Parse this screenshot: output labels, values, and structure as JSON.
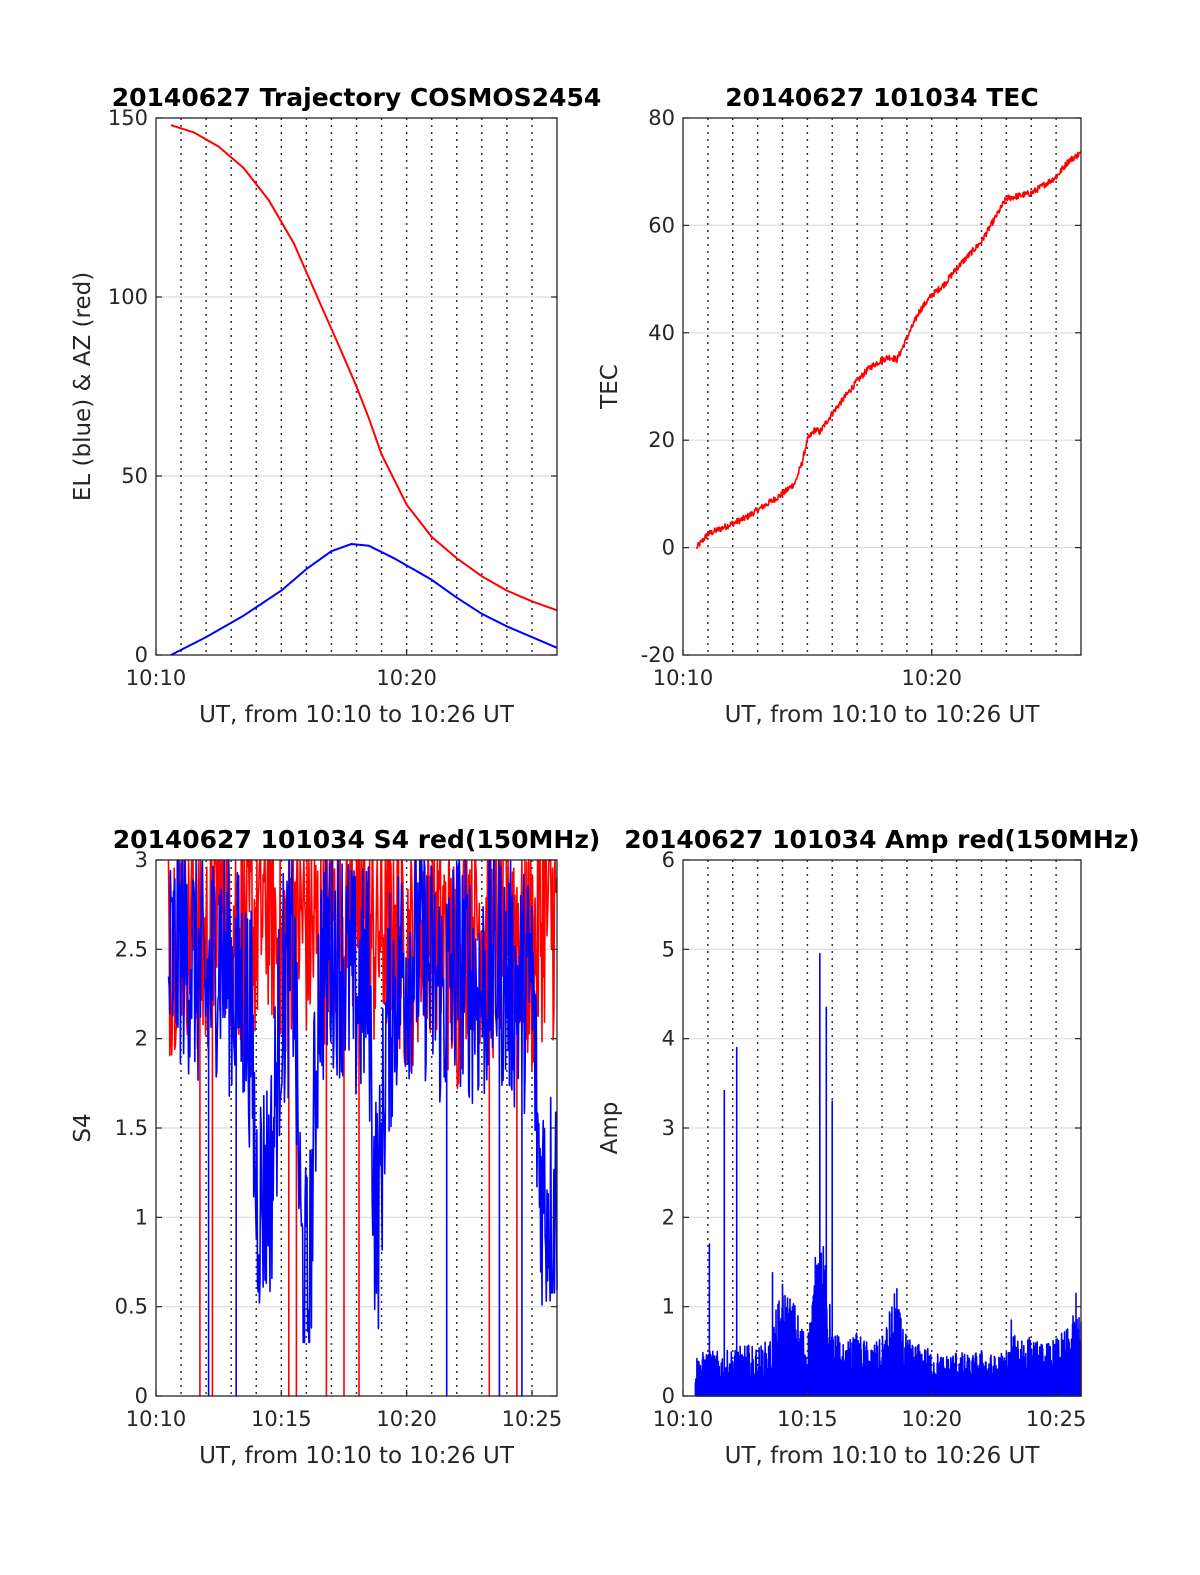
{
  "chart_data": [
    {
      "type": "line",
      "title": "20140627 Trajectory COSMOS2454",
      "xlabel": "UT, from 10:10 to 10:26 UT",
      "ylabel": "EL (blue) & AZ (red)",
      "xlim_minutes": [
        10.0,
        26.0
      ],
      "ylim": [
        0,
        150
      ],
      "yticks": [
        0,
        50,
        100,
        150
      ],
      "xticks": [
        {
          "value": 10,
          "label": "10:10"
        },
        {
          "value": 20,
          "label": "10:20"
        }
      ],
      "vgrid_minutes": [
        11,
        12,
        13,
        14,
        15,
        16,
        17,
        18,
        19,
        20,
        21,
        22,
        23,
        24,
        25
      ],
      "hgrid": true,
      "series": [
        {
          "color": "#ff0000",
          "x": [
            10.6,
            11.5,
            12.5,
            13.5,
            14.5,
            15.5,
            16.5,
            17.2,
            18,
            18.5,
            19,
            20,
            21,
            22,
            23,
            24,
            25,
            26
          ],
          "y": [
            148,
            146,
            142,
            136,
            127,
            115,
            99,
            88,
            75,
            66,
            56,
            42,
            33,
            27,
            22,
            18,
            15,
            12.5
          ]
        },
        {
          "color": "#0000ff",
          "x": [
            10.6,
            12,
            13.5,
            15,
            16,
            17,
            17.8,
            18.5,
            19.5,
            21,
            22,
            23,
            24,
            25,
            26
          ],
          "y": [
            0,
            5,
            11,
            18,
            24,
            29,
            31,
            30.5,
            27,
            21,
            16,
            11.5,
            8,
            5,
            2
          ]
        }
      ]
    },
    {
      "type": "line",
      "title": "20140627 101034 TEC",
      "xlabel": "UT, from 10:10 to 10:26 UT",
      "ylabel": "TEC",
      "xlim_minutes": [
        10.0,
        26.0
      ],
      "ylim": [
        -20,
        80
      ],
      "yticks": [
        -20,
        0,
        20,
        40,
        60,
        80
      ],
      "xticks": [
        {
          "value": 10,
          "label": "10:10"
        },
        {
          "value": 20,
          "label": "10:20"
        }
      ],
      "vgrid_minutes": [
        11,
        12,
        13,
        14,
        15,
        16,
        17,
        18,
        19,
        20,
        21,
        22,
        23,
        24,
        25
      ],
      "hgrid": true,
      "series": [
        {
          "color": "#ff0000",
          "x": [
            10.55,
            11,
            11.5,
            12,
            12.5,
            13,
            13.5,
            14,
            14.5,
            14.8,
            15,
            15.3,
            15.5,
            16,
            16.5,
            17,
            17.5,
            18,
            18.3,
            18.6,
            19,
            19.5,
            20,
            20.5,
            21,
            21.5,
            22,
            22.5,
            23,
            23.5,
            24,
            24.5,
            25,
            25.5,
            26
          ],
          "y": [
            0,
            2.5,
            3.5,
            4.5,
            5.5,
            7,
            8.5,
            10,
            12,
            16,
            20,
            22,
            21.5,
            25,
            28,
            31,
            33.5,
            35,
            35.5,
            35,
            39,
            44,
            47,
            49,
            52,
            54.5,
            57,
            61,
            65,
            65.5,
            66,
            67.5,
            69,
            72,
            73.5
          ],
          "noise": 0.6
        }
      ]
    },
    {
      "type": "line",
      "title": "20140627 101034 S4 red(150MHz)",
      "xlabel": "UT, from 10:10 to 10:26 UT",
      "ylabel": "S4",
      "xlim_minutes": [
        10.0,
        26.0
      ],
      "ylim": [
        0,
        3
      ],
      "yticks": [
        0,
        0.5,
        1,
        1.5,
        2,
        2.5,
        3
      ],
      "xticks": [
        {
          "value": 10,
          "label": "10:10"
        },
        {
          "value": 15,
          "label": "10:15"
        },
        {
          "value": 20,
          "label": "10:20"
        },
        {
          "value": 25,
          "label": "10:25"
        }
      ],
      "vgrid_minutes": [
        11,
        12,
        13,
        14,
        15,
        16,
        17,
        18,
        19,
        20,
        21,
        22,
        23,
        24,
        25
      ],
      "hgrid": true,
      "series": [
        {
          "color": "#ff0000",
          "x": [
            10.5,
            11,
            11.5,
            12,
            12.5,
            13,
            13.5,
            14,
            14.5,
            15,
            15.5,
            16,
            16.5,
            17,
            17.5,
            18,
            18.5,
            19,
            19.5,
            20,
            20.5,
            21,
            21.5,
            22,
            22.5,
            23,
            23.5,
            24,
            24.5,
            25,
            25.5,
            26
          ],
          "y": [
            2.4,
            2.6,
            2.5,
            2.3,
            2.7,
            2.6,
            2.4,
            2.5,
            2.7,
            2.3,
            2.6,
            2.5,
            2.4,
            2.6,
            2.5,
            2.7,
            2.4,
            2.5,
            2.6,
            2.3,
            2.5,
            2.6,
            2.4,
            2.2,
            2.6,
            2.5,
            2.4,
            2.6,
            2.5,
            2.3,
            2.6,
            2.5
          ],
          "drops": [
            11.75,
            12.25,
            15.3,
            15.6,
            16.8,
            17.5,
            18.1,
            23.3,
            24.4
          ]
        },
        {
          "color": "#0000ff",
          "x": [
            10.5,
            11,
            11.5,
            12,
            12.5,
            13,
            13.5,
            13.8,
            14,
            14.3,
            14.6,
            15,
            15.5,
            15.8,
            16.1,
            16.5,
            17,
            17.5,
            18,
            18.5,
            18.7,
            18.9,
            19.2,
            19.6,
            20,
            20.5,
            21,
            21.5,
            22,
            22.5,
            23,
            23.5,
            24,
            24.5,
            25,
            25.3,
            25.6,
            26
          ],
          "y": [
            2.2,
            2.4,
            2.3,
            2.1,
            2.4,
            2.2,
            2.1,
            1.9,
            1.0,
            1.0,
            1.1,
            2.1,
            2.3,
            0.6,
            0.4,
            2.2,
            2.4,
            2.3,
            2.1,
            2.2,
            1.0,
            0.9,
            1.9,
            2.2,
            2.3,
            2.4,
            2.2,
            2.1,
            2.3,
            2.2,
            2.1,
            2.3,
            2.2,
            2.1,
            2.2,
            1.1,
            0.95,
            1.0
          ],
          "drops": [
            12.1,
            13.2,
            21.6,
            23.7,
            24.6
          ]
        }
      ]
    },
    {
      "type": "line",
      "title": "20140627 101034 Amp red(150MHz)",
      "xlabel": "UT, from 10:10 to 10:26 UT",
      "ylabel": "Amp",
      "xlim_minutes": [
        10.0,
        26.0
      ],
      "ylim": [
        0,
        6
      ],
      "yticks": [
        0,
        1,
        2,
        3,
        4,
        5,
        6
      ],
      "xticks": [
        {
          "value": 10,
          "label": "10:10"
        },
        {
          "value": 15,
          "label": "10:15"
        },
        {
          "value": 20,
          "label": "10:20"
        },
        {
          "value": 25,
          "label": "10:25"
        }
      ],
      "vgrid_minutes": [
        11,
        12,
        13,
        14,
        15,
        16,
        17,
        18,
        19,
        20,
        21,
        22,
        23,
        24,
        25
      ],
      "hgrid": true,
      "series": [
        {
          "color": "#0000ff",
          "x": [
            10.5,
            11,
            11.5,
            12,
            12.5,
            13,
            13.5,
            14,
            14.5,
            15,
            15.5,
            16,
            16.5,
            17,
            17.5,
            18,
            18.5,
            19,
            19.5,
            20,
            20.5,
            21,
            21.5,
            22,
            22.5,
            23,
            23.5,
            24,
            24.5,
            25,
            25.5,
            26
          ],
          "y": [
            0.35,
            0.4,
            0.38,
            0.4,
            0.45,
            0.42,
            0.5,
            1.0,
            0.8,
            0.5,
            1.6,
            0.6,
            0.45,
            0.55,
            0.45,
            0.5,
            0.9,
            0.5,
            0.45,
            0.4,
            0.35,
            0.4,
            0.35,
            0.4,
            0.35,
            0.4,
            0.6,
            0.5,
            0.45,
            0.5,
            0.6,
            0.85
          ],
          "spikes": [
            [
              11.05,
              1.7
            ],
            [
              11.65,
              3.42
            ],
            [
              12.15,
              3.9
            ],
            [
              13.6,
              1.38
            ],
            [
              15.5,
              4.95
            ],
            [
              15.75,
              4.35
            ],
            [
              16.0,
              3.3
            ],
            [
              18.6,
              1.2
            ],
            [
              23.2,
              0.85
            ],
            [
              25.8,
              1.15
            ]
          ]
        }
      ]
    }
  ]
}
